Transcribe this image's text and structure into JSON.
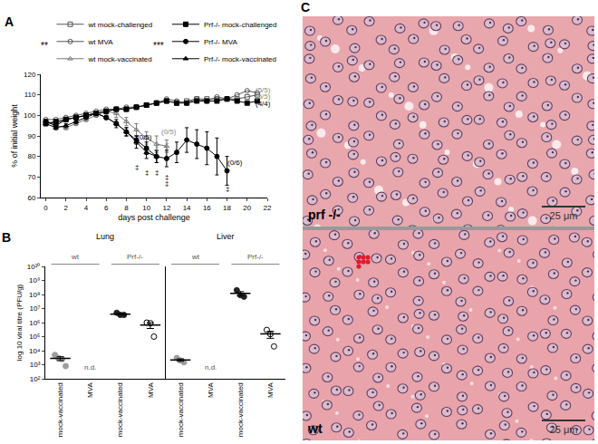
{
  "chart_data": [
    {
      "type": "line",
      "title": "A",
      "x_label": "days post challenge",
      "y_label": "% of initial weight",
      "xlim": [
        -0.5,
        22
      ],
      "xticks": [
        0,
        2,
        4,
        6,
        8,
        10,
        12,
        14,
        16,
        18,
        20,
        22
      ],
      "ylim": [
        60,
        120
      ],
      "yticks": [
        60,
        70,
        80,
        90,
        100,
        110,
        120
      ],
      "grid": false,
      "series": [
        {
          "name": "wt mock-challenged",
          "color": "#555555",
          "marker": "square-open",
          "x": [
            0,
            1,
            2,
            3,
            4,
            5,
            6,
            7,
            8,
            9,
            10,
            11,
            12,
            13,
            14,
            15,
            16,
            17,
            18,
            19,
            20,
            21
          ],
          "values": [
            97,
            96,
            98,
            99,
            100,
            101,
            102,
            103,
            103,
            104,
            105,
            106,
            107,
            106,
            107,
            108,
            108,
            108,
            108,
            108,
            109,
            110
          ]
        },
        {
          "name": "wt MVA",
          "color": "#555555",
          "marker": "circle-open",
          "x": [
            0,
            1,
            2,
            3,
            4,
            5,
            6,
            7,
            8,
            9,
            10,
            11,
            12,
            13,
            14,
            15,
            16,
            17,
            18,
            19,
            20,
            21
          ],
          "values": [
            98,
            98,
            99,
            100,
            101,
            102,
            103,
            103,
            104,
            104,
            105,
            106,
            108,
            107,
            106,
            108,
            107,
            109,
            108,
            110,
            112,
            111
          ]
        },
        {
          "name": "wt mock-vaccinated",
          "color": "#777777",
          "marker": "triangle-up-open",
          "x": [
            0,
            1,
            2,
            3,
            4,
            5,
            6,
            7,
            8,
            9,
            10,
            11,
            12
          ],
          "values": [
            97,
            95,
            94,
            96,
            98,
            100,
            102,
            101,
            97,
            93,
            89,
            86,
            85
          ],
          "error": [
            1,
            1,
            1,
            1,
            1,
            1,
            1,
            2,
            2,
            3,
            3,
            4,
            3
          ]
        },
        {
          "name": "Prf-/- mock-challenged",
          "color": "#000000",
          "marker": "square",
          "x": [
            0,
            1,
            2,
            3,
            4,
            5,
            6,
            7,
            8,
            9,
            10,
            11,
            12,
            13,
            14,
            15,
            16,
            17,
            18,
            19,
            20,
            21
          ],
          "values": [
            96,
            97,
            98,
            99,
            100,
            101,
            102,
            103,
            103,
            104,
            105,
            106,
            107,
            106,
            106,
            107,
            107,
            107,
            108,
            107,
            106,
            107
          ]
        },
        {
          "name": "Prf-/- MVA",
          "color": "#000000",
          "marker": "circle",
          "x": [
            0,
            1,
            2,
            3,
            4,
            5,
            6,
            7,
            8,
            9,
            10,
            11,
            12,
            13,
            14,
            15,
            16,
            17,
            18
          ],
          "values": [
            97,
            95,
            98,
            99,
            100,
            101,
            99,
            96,
            92,
            88,
            84,
            80,
            79,
            82,
            88,
            86,
            84,
            80,
            73
          ],
          "error": [
            1,
            1,
            1,
            1,
            1,
            1,
            1,
            1,
            2,
            2,
            3,
            3,
            4,
            5,
            6,
            7,
            8,
            9,
            7
          ]
        },
        {
          "name": "Prf-/- mock-vaccinated",
          "color": "#000000",
          "marker": "triangle-up",
          "x": [
            0,
            1,
            2,
            3,
            4,
            5,
            6,
            7,
            8,
            9,
            10,
            11
          ],
          "values": [
            96,
            94,
            95,
            97,
            99,
            101,
            99,
            96,
            92,
            87,
            82,
            80
          ],
          "error": [
            1,
            1,
            1,
            1,
            1,
            1,
            1,
            2,
            2,
            3,
            3,
            3
          ]
        }
      ],
      "significance": [
        {
          "text": "**",
          "series": [
            "wt mock-challenged",
            "wt MVA",
            "wt mock-vaccinated"
          ]
        },
        {
          "text": "***",
          "series": [
            "Prf-/- mock-challenged",
            "Prf-/- MVA",
            "Prf-/- mock-vaccinated"
          ]
        }
      ],
      "annotations": [
        {
          "text": "(5/5)",
          "x": 21.6,
          "y": 112.5,
          "color": "#888888"
        },
        {
          "text": "(5/5)",
          "x": 21.6,
          "y": 109,
          "color": "#888888"
        },
        {
          "text": "(4/4)",
          "x": 21.6,
          "y": 105.5,
          "color": "#000000"
        },
        {
          "text": "(0/5)",
          "x": 9.8,
          "y": 89.5,
          "color": "#000000"
        },
        {
          "text": "(0/5)",
          "x": 12.2,
          "y": 92,
          "color": "#888888"
        },
        {
          "text": "(0/6)",
          "x": 18.8,
          "y": 77,
          "color": "#000000"
        },
        {
          "text": "‡",
          "x": 9,
          "y": 75,
          "color": "#000000"
        },
        {
          "text": "‡",
          "x": 10,
          "y": 72,
          "color": "#000000"
        },
        {
          "text": "‡",
          "x": 11,
          "y": 72,
          "color": "#000000"
        },
        {
          "text": "‡",
          "x": 12,
          "y": 70,
          "color": "#000000"
        },
        {
          "text": "‡",
          "x": 12,
          "y": 67,
          "color": "#000000"
        },
        {
          "text": "‡",
          "x": 11,
          "y": 84,
          "color": "#888888"
        },
        {
          "text": "‡",
          "x": 12,
          "y": 86,
          "color": "#888888"
        },
        {
          "text": "‡",
          "x": 12,
          "y": 83,
          "color": "#888888"
        },
        {
          "text": "‡",
          "x": 18,
          "y": 64,
          "color": "#000000"
        }
      ]
    },
    {
      "type": "scatter",
      "title": "B",
      "y_label": "log 10 viral titre (PFU/g)",
      "log": "y",
      "grid": false,
      "ylim": [
        100,
        10000000000
      ],
      "yticks": [
        {
          "value": 100,
          "label": "10²"
        },
        {
          "value": 1000,
          "label": "10³"
        },
        {
          "value": 10000,
          "label": "10⁴"
        },
        {
          "value": 100000,
          "label": "10⁵"
        },
        {
          "value": 1000000,
          "label": "10⁶"
        },
        {
          "value": 10000000,
          "label": "10⁷"
        },
        {
          "value": 100000000,
          "label": "10⁸"
        },
        {
          "value": 1000000000,
          "label": "10⁹"
        },
        {
          "value": 10000000000,
          "label": "10¹⁰"
        }
      ],
      "categories": [
        "mock-vaccinated",
        "MVA",
        "mock-vaccinated",
        "MVA",
        "mock-vaccinated",
        "MVA",
        "mock-vaccinated",
        "MVA"
      ],
      "genotype_labels": [
        "wt",
        "Prf-/-",
        "wt",
        "Prf-/-"
      ],
      "organ_labels": [
        "Lung",
        "Liver"
      ],
      "groups": [
        {
          "values": [
            5000,
            3000,
            2500,
            800
          ],
          "mean": 2825,
          "sem": 870,
          "color": "#9e9e9e",
          "marker": "circle"
        },
        {
          "values": [],
          "label": "n.d."
        },
        {
          "values": [
            5000000,
            3500000,
            3500000
          ],
          "mean": 4000000,
          "sem": 500000,
          "color": "#222222",
          "marker": "circle"
        },
        {
          "values": [
            1000000,
            900000,
            100000
          ],
          "mean": 670000,
          "sem": 290000,
          "color": "#000000",
          "marker": "circle-open"
        },
        {
          "values": [
            3000,
            2000,
            1500
          ],
          "mean": 2170,
          "sem": 440,
          "color": "#9e9e9e",
          "marker": "circle"
        },
        {
          "values": [],
          "label": "n.d."
        },
        {
          "values": [
            200000000,
            90000000,
            70000000
          ],
          "mean": 120000000,
          "sem": 40000000,
          "color": "#222222",
          "marker": "circle"
        },
        {
          "values": [
            300000,
            150000,
            20000
          ],
          "mean": 157000,
          "sem": 81000,
          "color": "#000000",
          "marker": "circle-open"
        }
      ]
    }
  ],
  "histology": {
    "title": "C",
    "images": [
      {
        "label": "prf -/-",
        "scale_bar": "25 μm"
      },
      {
        "label": "wt",
        "scale_bar": "25 μm"
      }
    ]
  }
}
